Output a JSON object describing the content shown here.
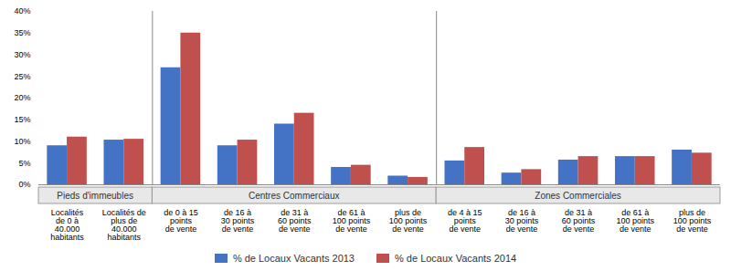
{
  "chart_data": {
    "type": "bar",
    "categories": [
      "Localités\nde 0 à\n40.000\nhabitants",
      "Localités de\nplus de\n40.000\nhabitants",
      "de 0 à 15\npoints\nde vente",
      "de 16 à\n30 points\nde vente",
      "de 31 à\n60 points\nde vente",
      "de 61 à\n100 points\nde vente",
      "plus de\n100 points\nde vente",
      "de 4 à 15\npoints\nde vente",
      "de 16 à\n30 points\nde vente",
      "de 31 à\n60 points\nde vente",
      "de 61 à\n100 points\nde vente",
      "plus de\n100 points\nde vente"
    ],
    "series": [
      {
        "name": "% de Locaux Vacants 2013",
        "color": "#4472C4",
        "values": [
          9.0,
          10.3,
          27.0,
          9.0,
          14.0,
          4.0,
          2.0,
          5.5,
          2.7,
          5.7,
          6.5,
          8.0
        ]
      },
      {
        "name": "% de Locaux Vacants 2014",
        "color": "#C0504D",
        "values": [
          11.0,
          10.5,
          35.0,
          10.3,
          16.5,
          4.5,
          1.7,
          8.6,
          3.5,
          6.5,
          6.5,
          7.3
        ]
      }
    ],
    "sections": [
      {
        "label": "Pieds d'immeubles",
        "size": 2
      },
      {
        "label": "Centres Commerciaux",
        "size": 5
      },
      {
        "label": "Zones Commerciales",
        "size": 5
      }
    ],
    "ylim": [
      0,
      40
    ],
    "yticks": [
      {
        "value": 0,
        "label": "0%"
      },
      {
        "value": 5,
        "label": "5%"
      },
      {
        "value": 10,
        "label": "10%"
      },
      {
        "value": 15,
        "label": "15%"
      },
      {
        "value": 20,
        "label": "20%"
      },
      {
        "value": 25,
        "label": "25%"
      },
      {
        "value": 30,
        "label": "30%"
      },
      {
        "value": 35,
        "label": "35%"
      },
      {
        "value": 40,
        "label": "40%"
      }
    ],
    "grid": false,
    "legend": "bottom"
  }
}
